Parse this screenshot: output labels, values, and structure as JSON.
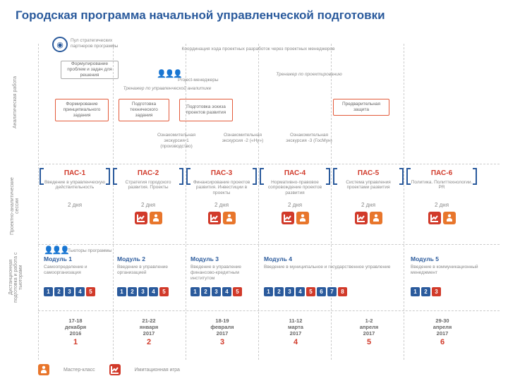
{
  "title": "Городская программа начальной управленческой подготовки",
  "colors": {
    "blue": "#2a5a9c",
    "red": "#d13a2a",
    "orange": "#e8762c",
    "grey": "#888888"
  },
  "vertical_labels": {
    "analytical": "Аналитическая работа",
    "sessions": "Проектно-аналитические сессии",
    "distance": "Дистанционная подготовка и работа с тьюторами"
  },
  "top_section": {
    "partners": "Пул стратегических партнеров программы",
    "coordination": "Координация хода проектных разработок через проектных менеджеров",
    "problem_formulation": "Формулирование проблем и задач для решения",
    "project_managers": "Project-менеджеры",
    "analytics_trainer": "Тренажер по управленческой аналитике",
    "design_trainer": "Тренажер по проектированию",
    "boxes": {
      "b1": "Формирование принципиального задания",
      "b2": "Подготовка технического задания",
      "b3": "Подготовка эскиза проектов развития",
      "b4": "Предварительная защита"
    },
    "excursions": {
      "e1": "Ознакомительная экскурсия-1 (производство)",
      "e2": "Ознакомительная экскурсия -2 («Ну»)",
      "e3": "Ознакомительная экскурсия -3 (ГосМун)"
    }
  },
  "pas": [
    {
      "title": "ПАС-1",
      "sub": "Введение в управленческую действительность",
      "dur": "2 дня"
    },
    {
      "title": "ПАС-2",
      "sub": "Стратегия городского развития. Проекты",
      "dur": "2 дня"
    },
    {
      "title": "ПАС-3",
      "sub": "Финансирование проектов развития. Инвестиции в проекты",
      "dur": "2 дня"
    },
    {
      "title": "ПАС-4",
      "sub": "Нормативно-правовое сопровождение проектов развития",
      "dur": "2 дня"
    },
    {
      "title": "ПАС-5",
      "sub": "Система управления проектами развития",
      "dur": "2 дня"
    },
    {
      "title": "ПАС-6",
      "sub": "Политика. Политтехнологии. PR",
      "dur": "2 дня"
    }
  ],
  "tutors_label": "Тьюторы программы",
  "modules": [
    {
      "title": "Модуль 1",
      "sub": "Самоопределение и самоорганизация",
      "nums": [
        1,
        2,
        3,
        4,
        5
      ],
      "red": [
        5
      ]
    },
    {
      "title": "Модуль 2",
      "sub": "Введение в управление организацией",
      "nums": [
        1,
        2,
        3,
        4,
        5
      ],
      "red": [
        5
      ]
    },
    {
      "title": "Модуль 3",
      "sub": "Введение в управление финансово-кредитным институтом",
      "nums": [
        1,
        2,
        3,
        4,
        5
      ],
      "red": [
        5
      ]
    },
    {
      "title": "Модуль 4",
      "sub": "Введение в муниципальное и государственное управление",
      "nums": [
        1,
        2,
        3,
        4,
        5,
        6,
        7,
        8
      ],
      "red": [
        5,
        8
      ]
    },
    {
      "title": "Модуль 5",
      "sub": "Введение в коммуникационный менеджмент",
      "nums": [
        1,
        2,
        3
      ],
      "red": [
        3
      ]
    }
  ],
  "dates": [
    {
      "d": "17-18 декабря 2016",
      "n": "1"
    },
    {
      "d": "21-22 января 2017",
      "n": "2"
    },
    {
      "d": "18-19 февраля 2017",
      "n": "3"
    },
    {
      "d": "11-12 марта 2017",
      "n": "4"
    },
    {
      "d": "1-2 апреля 2017",
      "n": "5"
    },
    {
      "d": "29-30 апреля 2017",
      "n": "6"
    }
  ],
  "legend": {
    "master": "Мастер-класс",
    "game": "Имитационная игра"
  }
}
